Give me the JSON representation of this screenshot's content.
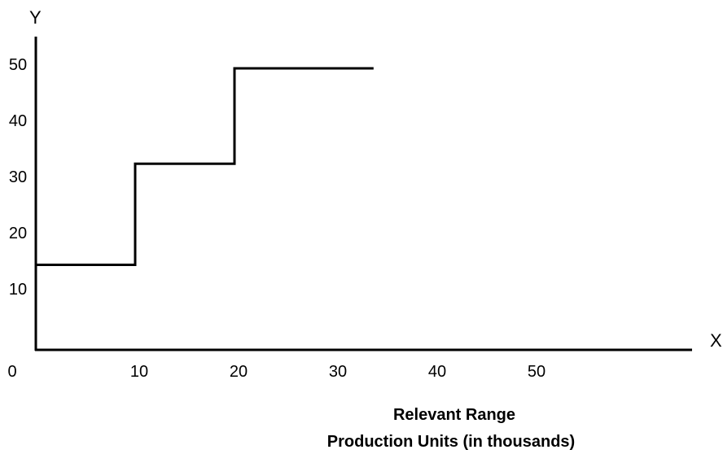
{
  "chart_data": {
    "type": "line",
    "step": true,
    "axis_letters": {
      "x": "X",
      "y": "Y"
    },
    "xlabel": [
      "Relevant Range",
      "Production Units (in thousands)"
    ],
    "ylabel": "",
    "xlim": [
      0,
      55
    ],
    "ylim": [
      0,
      58
    ],
    "x_ticks": [
      0,
      10,
      20,
      30,
      40,
      50
    ],
    "y_ticks": [
      10,
      20,
      30,
      40,
      50
    ],
    "series": [
      {
        "points": [
          [
            0,
            15
          ],
          [
            10,
            15
          ],
          [
            10,
            33
          ],
          [
            20,
            33
          ],
          [
            20,
            50
          ],
          [
            34,
            50
          ]
        ]
      }
    ],
    "colors": {
      "line": "#000000",
      "axis": "#000000"
    },
    "grid": false
  }
}
